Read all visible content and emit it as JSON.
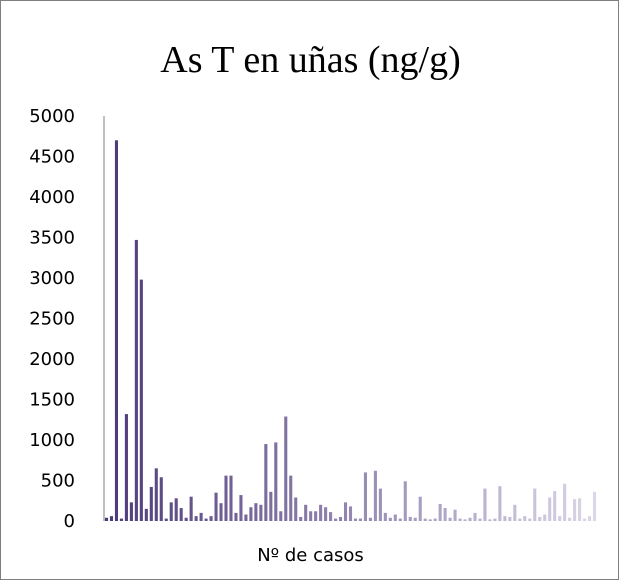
{
  "chart_data": {
    "type": "bar",
    "title": "As T en uñas (ng/g)",
    "xlabel": "Nº de casos",
    "ylabel": "",
    "ylim": [
      0,
      5000
    ],
    "y_ticks": [
      0,
      500,
      1000,
      1500,
      2000,
      2500,
      3000,
      3500,
      4000,
      4500,
      5000
    ],
    "grid": false,
    "legend": "none",
    "colors": {
      "start": "#4b3a78",
      "end": "#dcd6e8",
      "axis": "#7f7f7f"
    },
    "values": [
      40,
      60,
      4700,
      30,
      1320,
      230,
      3470,
      2980,
      150,
      420,
      650,
      540,
      30,
      230,
      280,
      160,
      40,
      300,
      60,
      100,
      30,
      60,
      350,
      220,
      560,
      560,
      100,
      320,
      80,
      170,
      220,
      200,
      950,
      360,
      970,
      120,
      1290,
      560,
      290,
      50,
      200,
      120,
      120,
      200,
      170,
      110,
      30,
      50,
      230,
      180,
      30,
      30,
      600,
      40,
      620,
      400,
      100,
      40,
      80,
      30,
      490,
      50,
      40,
      300,
      30,
      20,
      30,
      210,
      160,
      40,
      140,
      30,
      20,
      40,
      100,
      30,
      400,
      20,
      30,
      430,
      60,
      50,
      200,
      30,
      60,
      30,
      400,
      50,
      80,
      290,
      370,
      60,
      460,
      40,
      270,
      280,
      30,
      60,
      360
    ]
  }
}
